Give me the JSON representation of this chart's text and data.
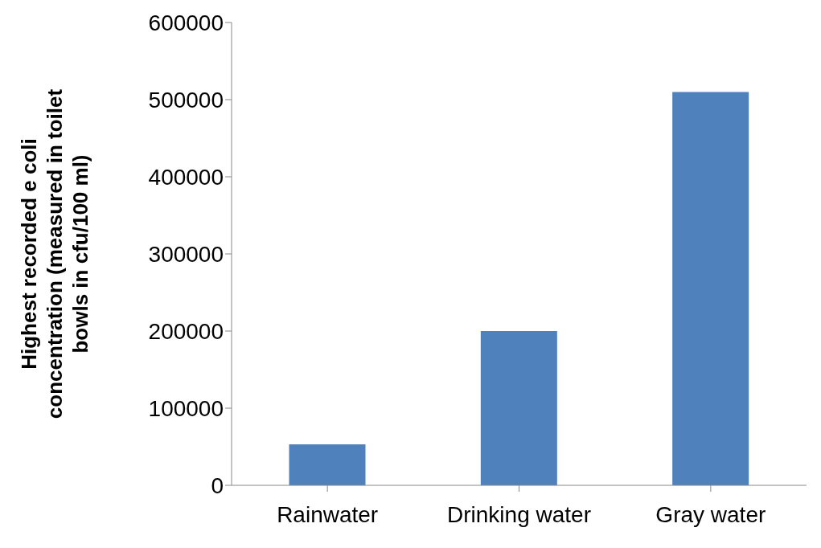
{
  "chart_data": {
    "type": "bar",
    "ylabel": "Highest recorded e coli concentration (measured in toilet bowls in cfu/100 ml)",
    "categories": [
      "Rainwater",
      "Drinking water",
      "Gray water"
    ],
    "values": [
      53000,
      200000,
      510000
    ],
    "color": "#4f81bd",
    "ylim": [
      0,
      600000
    ],
    "yticks": [
      0,
      100000,
      200000,
      300000,
      400000,
      500000,
      600000
    ],
    "grid": false
  }
}
